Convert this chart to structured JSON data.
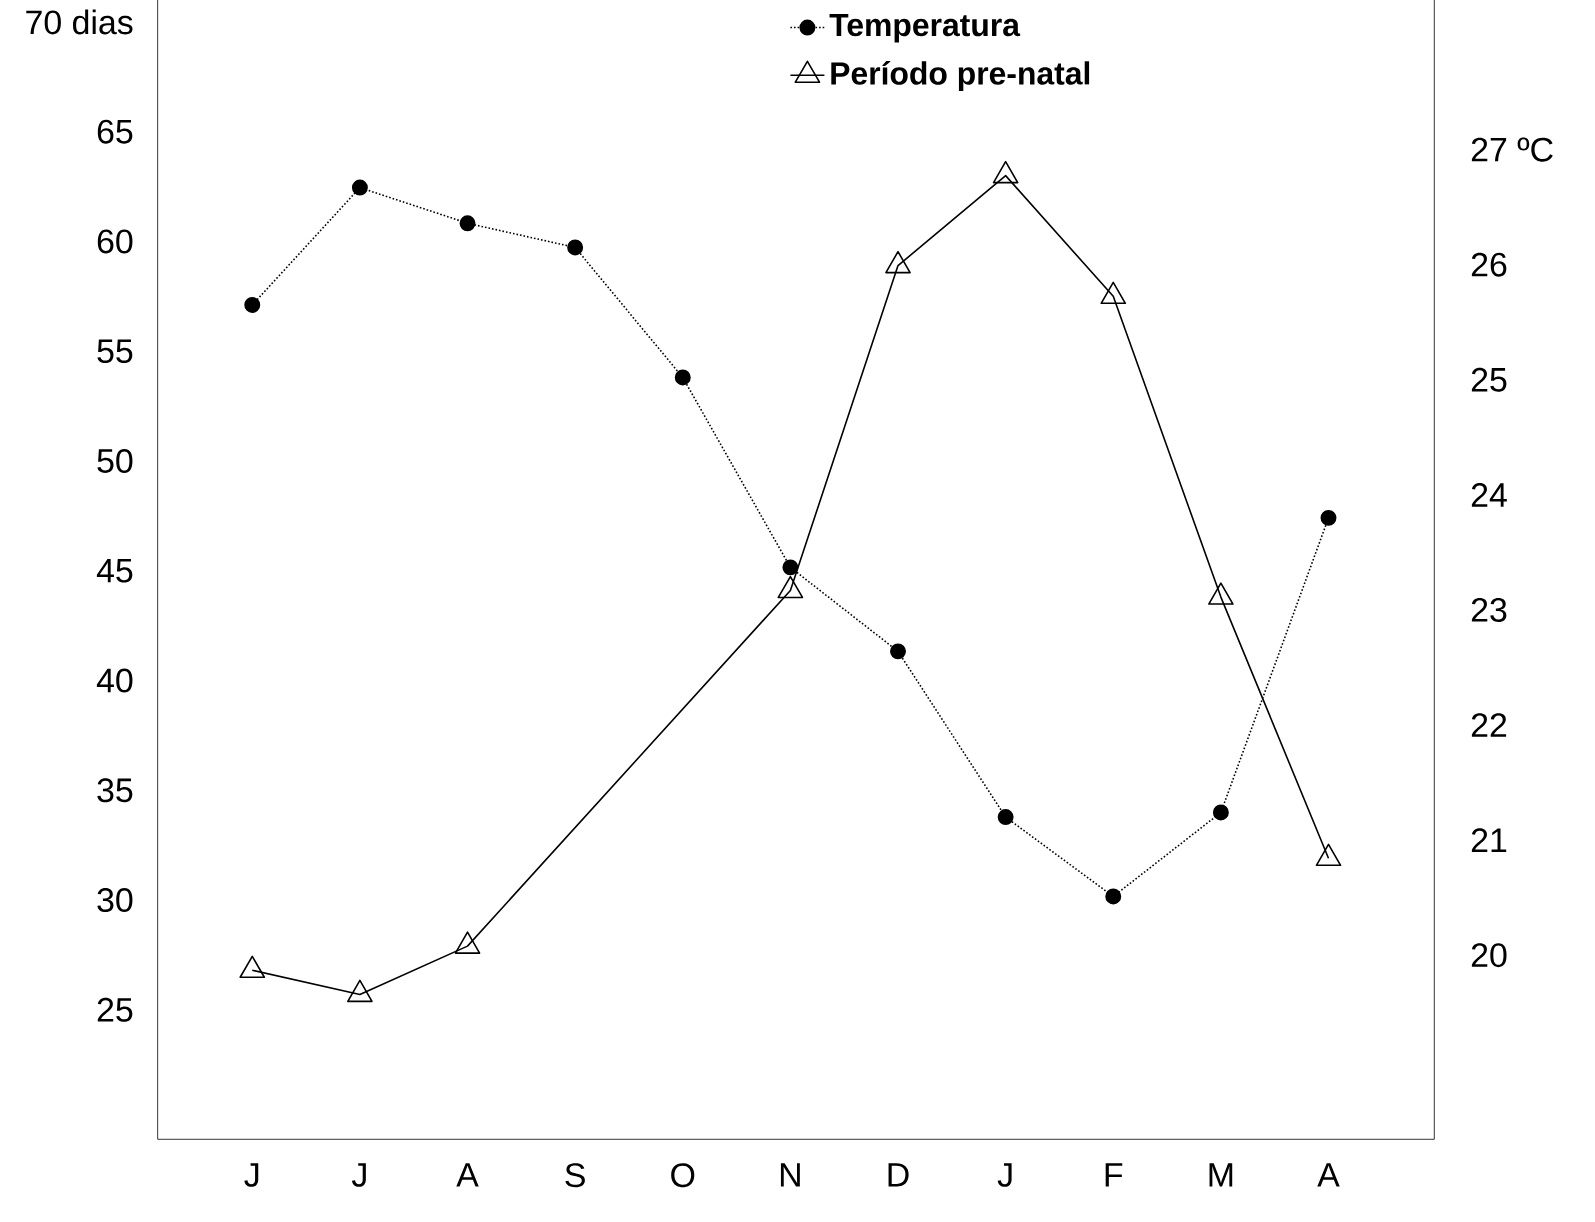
{
  "chart_data": {
    "type": "line",
    "categories": [
      "J",
      "J",
      "A",
      "S",
      "O",
      "N",
      "D",
      "J",
      "F",
      "M",
      "A"
    ],
    "series": [
      {
        "name": "Temperatura",
        "color": "#000000",
        "axis": "y2",
        "marker": "circle",
        "line_style": "dotted",
        "values": [
          25.65,
          26.67,
          26.36,
          26.15,
          25.02,
          23.37,
          22.64,
          21.2,
          20.51,
          21.24,
          23.8
        ]
      },
      {
        "name": "Período pre-natal",
        "color": "#000000",
        "axis": "y",
        "marker": "triangle",
        "line_style": "solid",
        "values": [
          26.8,
          25.7,
          27.9,
          null,
          null,
          44.1,
          58.9,
          63.0,
          57.5,
          43.8,
          31.9
        ]
      }
    ],
    "ylim": [
      19.1,
      71
    ],
    "yticks": [
      25,
      30,
      35,
      40,
      45,
      50,
      55,
      60,
      65,
      {
        "value": 70,
        "label": "70 dias"
      }
    ],
    "y2lim": [
      18.4,
      28.3
    ],
    "y2ticks": [
      20,
      21,
      22,
      23,
      24,
      25,
      26,
      {
        "value": 27,
        "label": "27 ºC"
      }
    ],
    "legend": "top",
    "grid": false
  }
}
